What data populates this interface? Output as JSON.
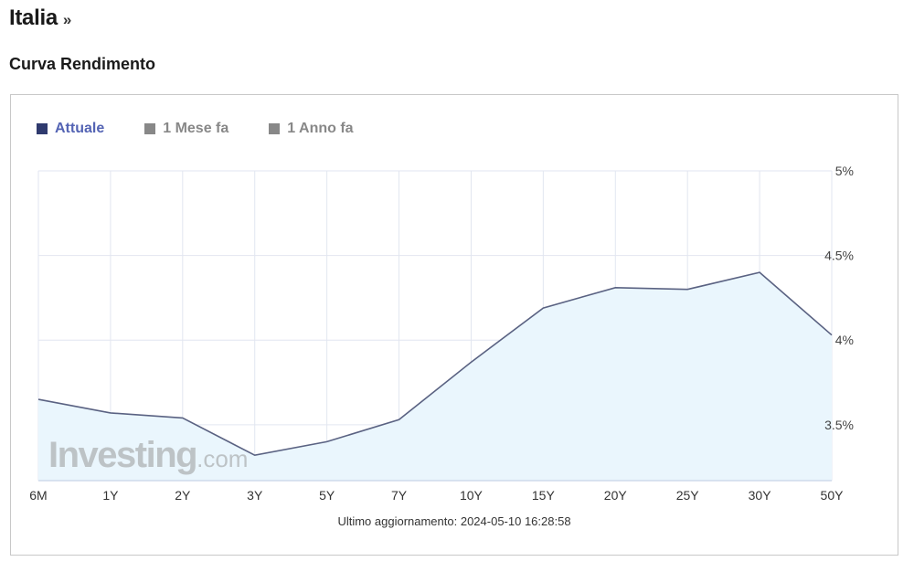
{
  "header": {
    "title": "Italia",
    "chevron": "»"
  },
  "section": {
    "title": "Curva Rendimento"
  },
  "legend": [
    {
      "label": "Attuale",
      "color": "#2f3a6e",
      "text_color": "#5464b4"
    },
    {
      "label": "1 Mese fa",
      "color": "#888888",
      "text_color": "#888888"
    },
    {
      "label": "1 Anno fa",
      "color": "#888888",
      "text_color": "#888888"
    }
  ],
  "watermark": {
    "brand": "Investing",
    "suffix": ".com"
  },
  "footer": {
    "updated": "Ultimo aggiornamento: 2024-05-10 16:28:58"
  },
  "chart_data": {
    "type": "area",
    "categories": [
      "6M",
      "1Y",
      "2Y",
      "3Y",
      "5Y",
      "7Y",
      "10Y",
      "15Y",
      "20Y",
      "25Y",
      "30Y",
      "50Y"
    ],
    "series": [
      {
        "name": "Attuale",
        "values": [
          3.65,
          3.57,
          3.54,
          3.32,
          3.4,
          3.53,
          3.87,
          4.19,
          4.31,
          4.3,
          4.4,
          4.03
        ]
      }
    ],
    "y_ticks": [
      3.5,
      4.0,
      4.5,
      5.0
    ],
    "y_tick_labels": [
      "3.5%",
      "4%",
      "4.5%",
      "5%"
    ],
    "ylim": [
      3.17,
      5.0
    ],
    "y_axis_side": "right",
    "grid": true,
    "legend_position": "top-left",
    "colors": {
      "line": "#5a6282",
      "fill": "#eaf6fd",
      "grid": "#e2e6f0",
      "axis": "#c7d3e8"
    }
  }
}
